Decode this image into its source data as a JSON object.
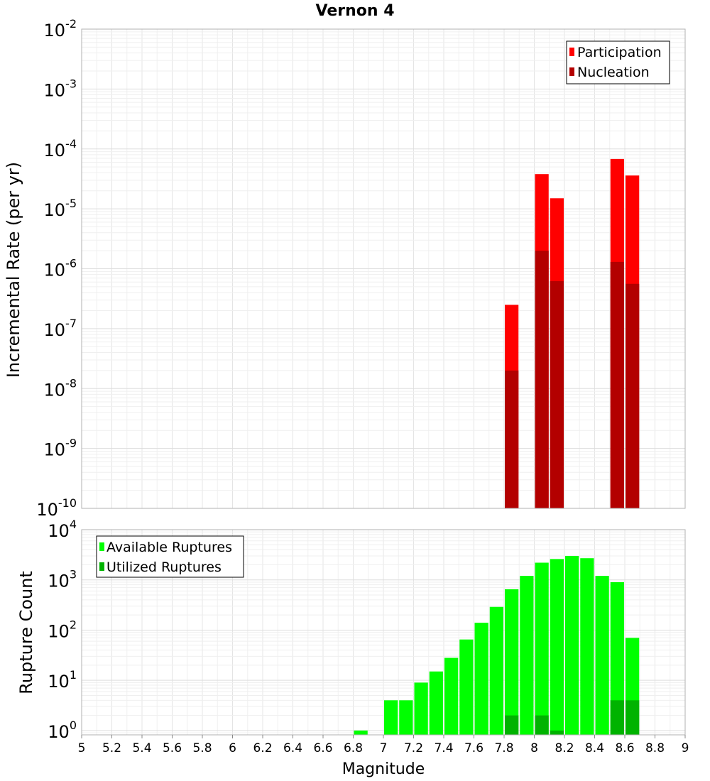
{
  "chart_data": [
    {
      "type": "bar",
      "title": "Vernon 4",
      "ylabel": "Incremental Rate (per yr)",
      "xlabel": "",
      "yscale": "log",
      "ylim": [
        1e-10,
        0.01
      ],
      "xlim": [
        5,
        9
      ],
      "grid": true,
      "legend_position": "top-right",
      "x": [
        7.85,
        8.05,
        8.15,
        8.55,
        8.65
      ],
      "series": [
        {
          "name": "Participation",
          "color": "#ff0000",
          "values": [
            2.5e-07,
            3.8e-05,
            1.5e-05,
            6.8e-05,
            3.6e-05
          ]
        },
        {
          "name": "Nucleation",
          "color": "#b30000",
          "values": [
            2e-08,
            2e-06,
            6.2e-07,
            1.3e-06,
            5.6e-07
          ]
        }
      ]
    },
    {
      "type": "bar",
      "title": "",
      "ylabel": "Rupture Count",
      "xlabel": "Magnitude",
      "yscale": "log",
      "ylim": [
        0.82,
        10000
      ],
      "xlim": [
        5,
        9
      ],
      "grid": true,
      "legend_position": "top-left",
      "x": [
        6.85,
        7.05,
        7.15,
        7.25,
        7.35,
        7.45,
        7.55,
        7.65,
        7.75,
        7.85,
        7.95,
        8.05,
        8.15,
        8.25,
        8.35,
        8.45,
        8.55,
        8.65
      ],
      "series": [
        {
          "name": "Available Ruptures",
          "color": "#00ff00",
          "values": [
            1,
            4,
            4,
            9,
            15,
            28,
            65,
            140,
            290,
            650,
            1200,
            2200,
            2600,
            3000,
            2700,
            1200,
            900,
            70
          ]
        },
        {
          "name": "Utilized Ruptures",
          "color": "#00b300",
          "values": [
            0,
            0,
            0,
            0,
            0,
            0,
            0,
            0,
            0,
            2,
            0,
            2,
            1,
            0,
            0,
            0,
            4,
            4
          ]
        }
      ]
    }
  ],
  "x_ticks": [
    "5",
    "5.2",
    "5.4",
    "5.6",
    "5.8",
    "6",
    "6.2",
    "6.4",
    "6.6",
    "6.8",
    "7",
    "7.2",
    "7.4",
    "7.6",
    "7.8",
    "8",
    "8.2",
    "8.4",
    "8.6",
    "8.8",
    "9"
  ],
  "top_y_ticks": [
    {
      "base": "10",
      "exp": "-2"
    },
    {
      "base": "10",
      "exp": "-3"
    },
    {
      "base": "10",
      "exp": "-4"
    },
    {
      "base": "10",
      "exp": "-5"
    },
    {
      "base": "10",
      "exp": "-6"
    },
    {
      "base": "10",
      "exp": "-7"
    },
    {
      "base": "10",
      "exp": "-8"
    },
    {
      "base": "10",
      "exp": "-9"
    },
    {
      "base": "10",
      "exp": "-10"
    }
  ],
  "bottom_y_ticks": [
    {
      "base": "10",
      "exp": "4"
    },
    {
      "base": "10",
      "exp": "3"
    },
    {
      "base": "10",
      "exp": "2"
    },
    {
      "base": "10",
      "exp": "1"
    },
    {
      "base": "10",
      "exp": "0"
    }
  ]
}
